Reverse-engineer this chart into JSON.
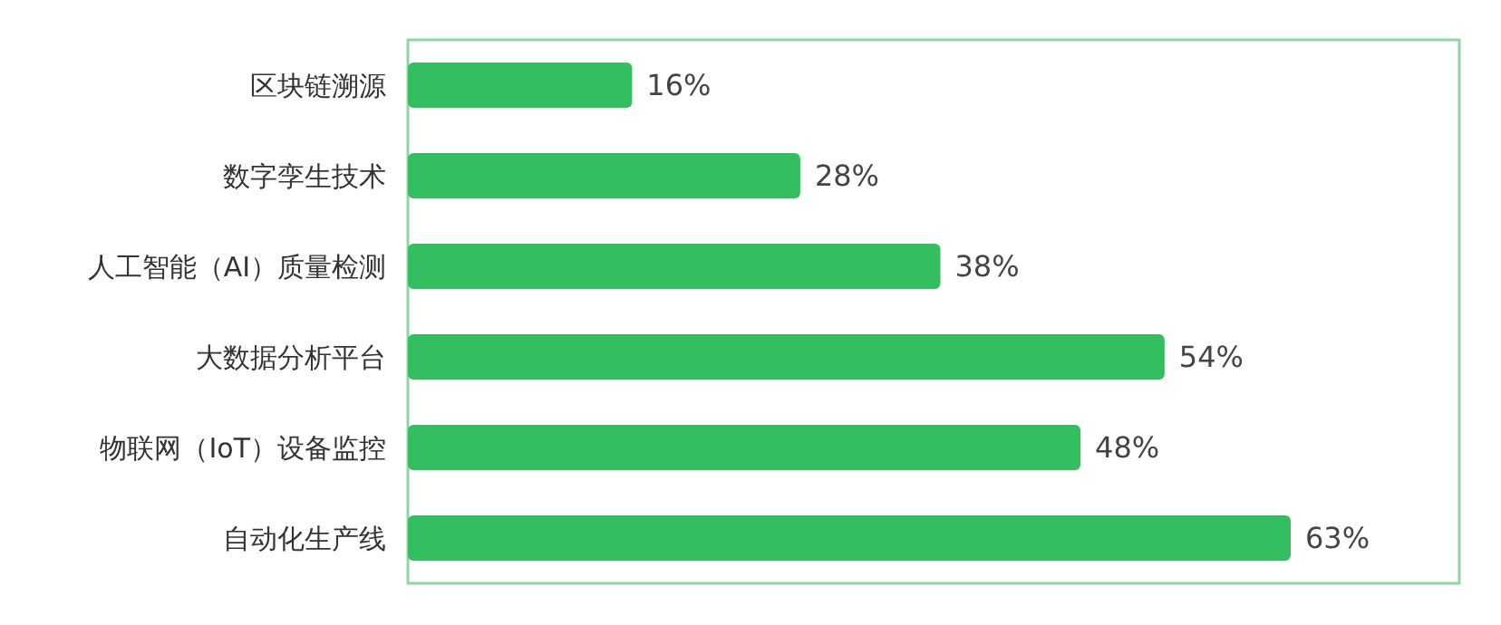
{
  "chart_data": {
    "type": "bar",
    "orientation": "horizontal",
    "categories": [
      "区块链溯源",
      "数字孪生技术",
      "人工智能（AI）质量检测",
      "大数据分析平台",
      "物联网（IoT）设备监控",
      "自动化生产线"
    ],
    "values": [
      16,
      28,
      38,
      54,
      48,
      63
    ],
    "color": "#33bf5f",
    "value_labels": [
      "16%",
      "28%",
      "38%",
      "54%",
      "48%",
      "63%"
    ]
  }
}
